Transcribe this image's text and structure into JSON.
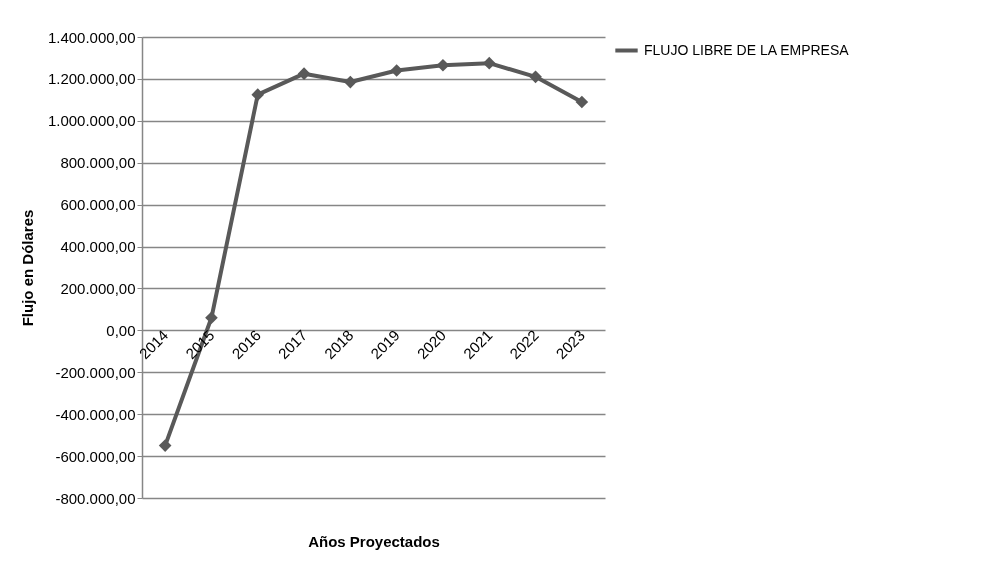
{
  "chart_data": {
    "type": "line",
    "xlabel": "Años Proyectados",
    "ylabel": "Flujo en Dólares",
    "categories": [
      "2014",
      "2015",
      "2016",
      "2017",
      "2018",
      "2019",
      "2020",
      "2021",
      "2022",
      "2023"
    ],
    "series": [
      {
        "name": "FLUJO LIBRE DE LA EMPRESA",
        "color": "#595959",
        "values": [
          -550000,
          60000,
          1125000,
          1225000,
          1185000,
          1240000,
          1265000,
          1275000,
          1210000,
          1090000
        ]
      }
    ],
    "ylim": [
      -800000,
      1400000
    ],
    "yticks": [
      {
        "value": -800000,
        "label": "-800.000,00"
      },
      {
        "value": -600000,
        "label": "-600.000,00"
      },
      {
        "value": -400000,
        "label": "-400.000,00"
      },
      {
        "value": -200000,
        "label": "-200.000,00"
      },
      {
        "value": 0,
        "label": "0,00"
      },
      {
        "value": 200000,
        "label": "200.000,00"
      },
      {
        "value": 400000,
        "label": "400.000,00"
      },
      {
        "value": 600000,
        "label": "600.000,00"
      },
      {
        "value": 800000,
        "label": "800.000,00"
      },
      {
        "value": 1000000,
        "label": "1.000.000,00"
      },
      {
        "value": 1200000,
        "label": "1.200.000,00"
      },
      {
        "value": 1400000,
        "label": "1.400.000,00"
      }
    ],
    "grid": "y",
    "legend": "right",
    "marker": "diamond",
    "line_style": "solid"
  }
}
